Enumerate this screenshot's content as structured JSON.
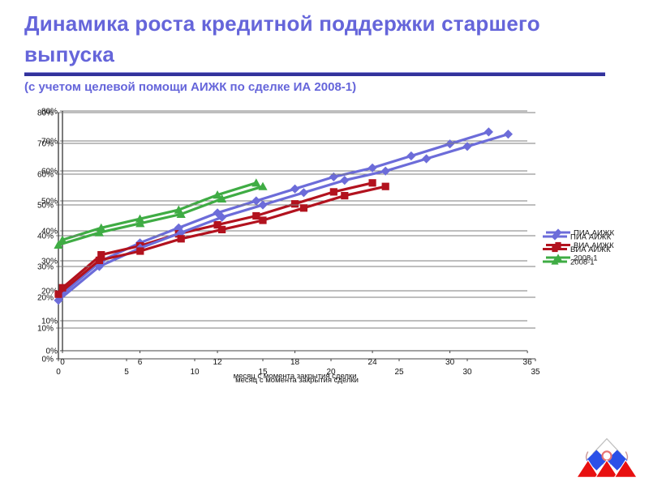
{
  "slide": {
    "title": "Динамика роста кредитной поддержки старшего выпуска",
    "subtitle": "(с учетом целевой помощи АИЖК по сделке ИА 2008-1)",
    "title_color": "#6565da",
    "underline_color": "#32329b"
  },
  "chart_data": {
    "type": "line",
    "title": "",
    "xlabel": "месяц с момента закрытия сделки",
    "ylabel": "",
    "units": "percent",
    "ylim": [
      0,
      80
    ],
    "xlim": [
      0,
      36
    ],
    "grid": true,
    "legend_position": "right",
    "ghosted_duplicate": true,
    "y_tick_labels": [
      "0%",
      "10%",
      "20%",
      "30%",
      "40%",
      "50%",
      "60%",
      "70%",
      "80%"
    ],
    "x_ticks": [
      0,
      5,
      10,
      15,
      20,
      25,
      30,
      35
    ],
    "x_ticks_ghost": [
      0,
      6,
      12,
      18,
      24,
      30,
      36
    ],
    "series": [
      {
        "name": "ПИА АИЖК",
        "color": "#6c6cd9",
        "marker": "diamond",
        "x": [
          0,
          3,
          6,
          9,
          12,
          15,
          18,
          21,
          24,
          27,
          30,
          33
        ],
        "values": [
          19,
          30,
          36,
          41,
          46,
          50,
          54,
          58,
          61,
          65,
          69,
          73
        ]
      },
      {
        "name": "ВИА АИЖК",
        "color": "#b2121e",
        "marker": "square",
        "x": [
          0,
          3,
          6,
          9,
          12,
          15,
          18,
          21,
          24
        ],
        "values": [
          21,
          32,
          35,
          39,
          42,
          45,
          49,
          53,
          56
        ]
      },
      {
        "name": "2008-1",
        "color": "#3fac44",
        "marker": "triangle",
        "x": [
          0,
          3,
          6,
          9,
          12,
          15
        ],
        "values": [
          37,
          41,
          44,
          47,
          52,
          56
        ]
      }
    ]
  },
  "logo": {
    "name": "АИЖК",
    "colors": {
      "roof_red": "#e81010",
      "wall_blue": "#2b50e8",
      "diamond_outline": "#c0c0c0",
      "ring_red": "#e87272",
      "hook": "#cc9a9a"
    }
  }
}
